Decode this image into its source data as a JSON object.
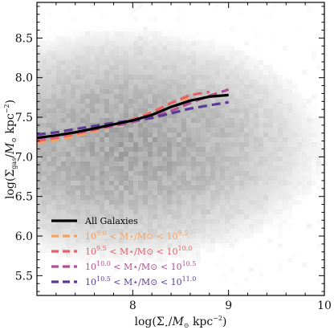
{
  "chart_data": {
    "type": "line",
    "background": "density-heatmap",
    "xlim": [
      7.0,
      10.0
    ],
    "ylim": [
      5.25,
      8.95
    ],
    "xticks": [
      8,
      9,
      10
    ],
    "xtick_labels": [
      "8",
      "9",
      "10"
    ],
    "yticks": [
      5.5,
      6.0,
      6.5,
      7.0,
      7.5,
      8.0,
      8.5
    ],
    "ytick_labels": [
      "5.5",
      "6.0",
      "6.5",
      "7.0",
      "7.5",
      "8.0",
      "8.5"
    ],
    "xlabel": "log(Σ⋆/M⊙ kpc⁻²)",
    "ylabel": "log(Σgas/M⊙ kpc⁻²)",
    "legend_position": "lower-left",
    "series": [
      {
        "name": "All Galaxies",
        "color": "#000000",
        "style": "solid",
        "x": [
          7.0,
          7.2,
          7.4,
          7.6,
          7.8,
          8.0,
          8.2,
          8.4,
          8.6,
          8.8,
          9.0
        ],
        "y": [
          7.24,
          7.27,
          7.31,
          7.36,
          7.41,
          7.46,
          7.53,
          7.63,
          7.71,
          7.76,
          7.78
        ]
      },
      {
        "name": "10^9.0 < M⋆/M⊙ < 10^9.5",
        "color": "#f5a05f",
        "style": "dashed",
        "x": [
          7.0,
          7.2,
          7.4,
          7.6,
          7.8,
          8.0,
          8.2,
          8.4,
          8.6
        ],
        "y": [
          7.18,
          7.21,
          7.26,
          7.32,
          7.39,
          7.47,
          7.57,
          7.68,
          7.75
        ]
      },
      {
        "name": "10^9.5 < M⋆/M⊙ < 10^10.0",
        "color": "#e4606a",
        "style": "dashed",
        "x": [
          7.0,
          7.2,
          7.4,
          7.6,
          7.8,
          8.0,
          8.2,
          8.4,
          8.6,
          8.8
        ],
        "y": [
          7.2,
          7.24,
          7.29,
          7.34,
          7.4,
          7.47,
          7.56,
          7.68,
          7.78,
          7.82
        ]
      },
      {
        "name": "10^10.0 < M⋆/M⊙ < 10^10.5",
        "color": "#b04f92",
        "style": "dashed",
        "x": [
          7.0,
          7.2,
          7.4,
          7.6,
          7.8,
          8.0,
          8.2,
          8.4,
          8.6,
          8.8,
          9.0
        ],
        "y": [
          7.23,
          7.27,
          7.31,
          7.35,
          7.39,
          7.44,
          7.5,
          7.58,
          7.68,
          7.77,
          7.85
        ]
      },
      {
        "name": "10^10.5 < M⋆/M⊙ < 10^11.0",
        "color": "#5b3a97",
        "style": "dashed",
        "x": [
          7.0,
          7.2,
          7.4,
          7.6,
          7.8,
          8.0,
          8.2,
          8.4,
          8.6,
          8.8,
          9.0
        ],
        "y": [
          7.28,
          7.31,
          7.35,
          7.39,
          7.43,
          7.46,
          7.49,
          7.55,
          7.61,
          7.65,
          7.69
        ]
      }
    ],
    "legend": [
      {
        "color": "#000000",
        "style": "solid",
        "text": "All Galaxies"
      },
      {
        "color": "#f5a05f",
        "style": "dashed",
        "a": "10",
        "ae": "9.0",
        "mid": " < M⋆/M⊙ < ",
        "b": "10",
        "be": "9.5"
      },
      {
        "color": "#e4606a",
        "style": "dashed",
        "a": "10",
        "ae": "9.5",
        "mid": " < M⋆/M⊙ < ",
        "b": "10",
        "be": "10.0"
      },
      {
        "color": "#b04f92",
        "style": "dashed",
        "a": "10",
        "ae": "10.0",
        "mid": " < M⋆/M⊙ < ",
        "b": "10",
        "be": "10.5"
      },
      {
        "color": "#5b3a97",
        "style": "dashed",
        "a": "10",
        "ae": "10.5",
        "mid": " < M⋆/M⊙ < ",
        "b": "10",
        "be": "11.0"
      }
    ]
  }
}
